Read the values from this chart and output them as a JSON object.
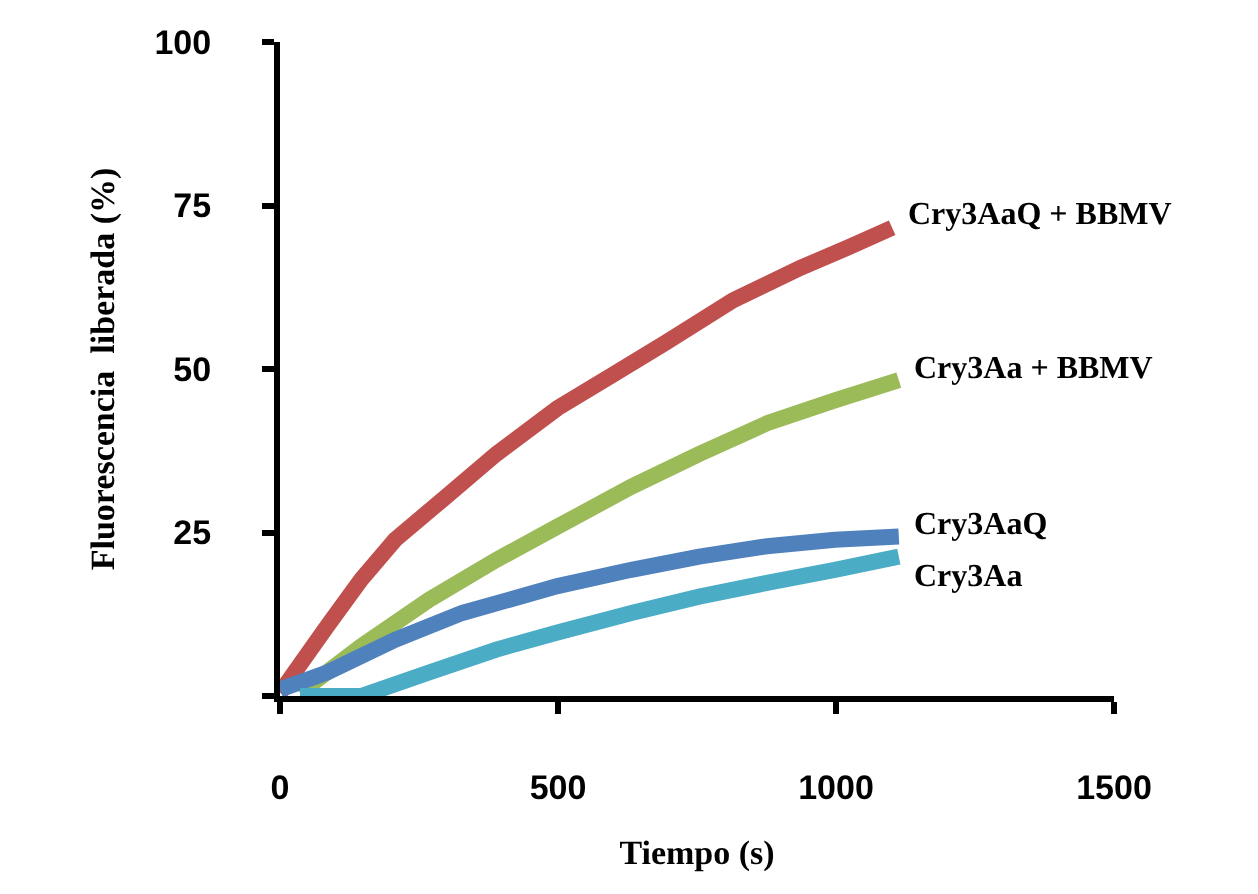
{
  "chart_data": {
    "type": "line",
    "xlabel": "Tiempo (s)",
    "ylabel": "Fluorescencia  liberada (%)",
    "xlim": [
      0,
      1500
    ],
    "xticks": [
      0,
      500,
      1000,
      1500
    ],
    "ylim": [
      0,
      100
    ],
    "yticks": [
      {
        "value": 0,
        "label": null
      },
      25,
      50,
      75,
      100
    ],
    "legend": false,
    "marker": "none",
    "line_style": "solid",
    "series": [
      {
        "name": "Cry3AaQ + BBMV",
        "color": "#c0504d",
        "x": [
          0,
          85,
          146,
          207,
          292,
          389,
          499,
          596,
          693,
          815,
          937,
          1022,
          1101
        ],
        "values": [
          0.5,
          10.7,
          17.8,
          23.9,
          30,
          37,
          44,
          49,
          54,
          60.5,
          65.5,
          68.6,
          71.6
        ]
      },
      {
        "name": "Cry3Aa + BBMV",
        "color": "#9bbb59",
        "x": [
          36,
          146,
          268,
          389,
          499,
          632,
          754,
          876,
          998,
          1113
        ],
        "values": [
          0.5,
          7.6,
          14.7,
          20.8,
          25.9,
          32,
          37,
          41.7,
          45.2,
          48.3
        ]
      },
      {
        "name": "Cry3AaQ",
        "color": "#4f81bd",
        "x": [
          0,
          85,
          207,
          328,
          499,
          632,
          754,
          876,
          998,
          1113
        ],
        "values": [
          1,
          3.6,
          8.6,
          12.7,
          16.8,
          19.3,
          21.3,
          22.9,
          23.9,
          24.4
        ]
      },
      {
        "name": "Cry3Aa",
        "color": "#4bacc6",
        "x": [
          36,
          146,
          268,
          389,
          499,
          632,
          754,
          876,
          998,
          1113
        ],
        "values": [
          0,
          0,
          3.6,
          7.1,
          9.7,
          12.7,
          15.2,
          17.3,
          19.3,
          21.3
        ]
      }
    ]
  }
}
